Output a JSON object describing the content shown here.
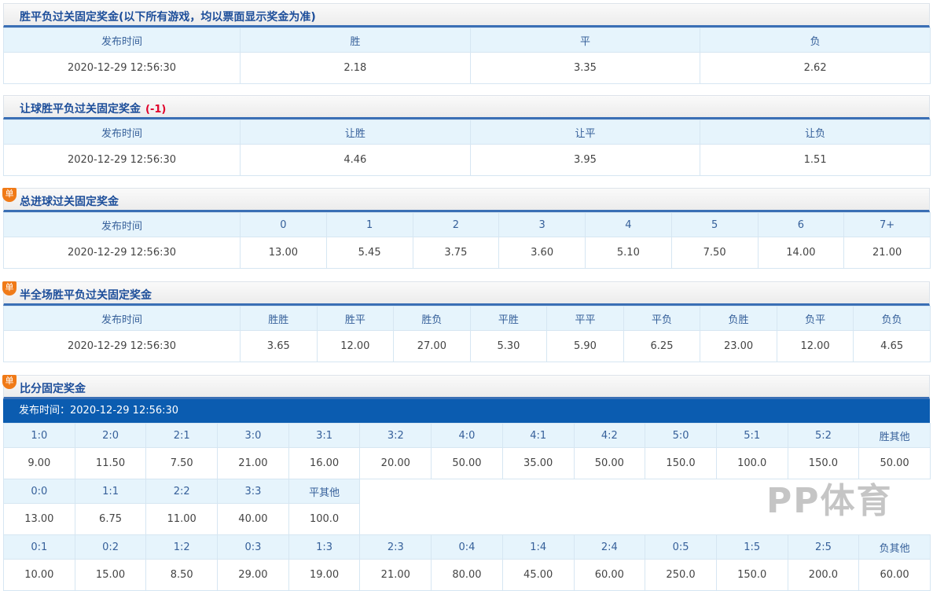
{
  "sections": [
    {
      "title": "胜平负过关固定奖金(以下所有游戏，均以票面显示奖金为准)",
      "handicap": "",
      "badge": "",
      "cols": [
        "发布时间",
        "胜",
        "平",
        "负"
      ],
      "row": [
        "2020-12-29 12:56:30",
        "2.18",
        "3.35",
        "2.62"
      ],
      "first_w": 301
    },
    {
      "title": "让球胜平负过关固定奖金",
      "handicap": "(-1)",
      "badge": "",
      "cols": [
        "发布时间",
        "让胜",
        "让平",
        "让负"
      ],
      "row": [
        "2020-12-29 12:56:30",
        "4.46",
        "3.95",
        "1.51"
      ],
      "first_w": 301
    },
    {
      "title": "总进球过关固定奖金",
      "handicap": "",
      "badge": "单",
      "cols": [
        "发布时间",
        "0",
        "1",
        "2",
        "3",
        "4",
        "5",
        "6",
        "7+"
      ],
      "row": [
        "2020-12-29 12:56:30",
        "13.00",
        "5.45",
        "3.75",
        "3.60",
        "5.10",
        "7.50",
        "14.00",
        "21.00"
      ],
      "first_w": 301
    },
    {
      "title": "半全场胜平负过关固定奖金",
      "handicap": "",
      "badge": "单",
      "cols": [
        "发布时间",
        "胜胜",
        "胜平",
        "胜负",
        "平胜",
        "平平",
        "平负",
        "负胜",
        "负平",
        "负负"
      ],
      "row": [
        "2020-12-29 12:56:30",
        "3.65",
        "12.00",
        "27.00",
        "5.30",
        "5.90",
        "6.25",
        "23.00",
        "12.00",
        "4.65"
      ],
      "first_w": 301
    }
  ],
  "score": {
    "title": "比分固定奖金",
    "badge": "单",
    "publish": "发布时间：2020-12-29 12:56:30",
    "groups": [
      {
        "cols": [
          "1:0",
          "2:0",
          "2:1",
          "3:0",
          "3:1",
          "3:2",
          "4:0",
          "4:1",
          "4:2",
          "5:0",
          "5:1",
          "5:2",
          "胜其他"
        ],
        "row": [
          "9.00",
          "11.50",
          "7.50",
          "21.00",
          "16.00",
          "20.00",
          "50.00",
          "35.00",
          "50.00",
          "150.0",
          "100.0",
          "150.0",
          "50.00"
        ]
      },
      {
        "cols": [
          "0:0",
          "1:1",
          "2:2",
          "3:3",
          "平其他"
        ],
        "row": [
          "13.00",
          "6.75",
          "11.00",
          "40.00",
          "100.0"
        ]
      },
      {
        "cols": [
          "0:1",
          "0:2",
          "1:2",
          "0:3",
          "1:3",
          "2:3",
          "0:4",
          "1:4",
          "2:4",
          "0:5",
          "1:5",
          "2:5",
          "负其他"
        ],
        "row": [
          "10.00",
          "15.00",
          "8.50",
          "29.00",
          "19.00",
          "21.00",
          "80.00",
          "45.00",
          "60.00",
          "250.0",
          "150.0",
          "200.0",
          "60.00"
        ]
      }
    ]
  },
  "watermark": "PP体育"
}
